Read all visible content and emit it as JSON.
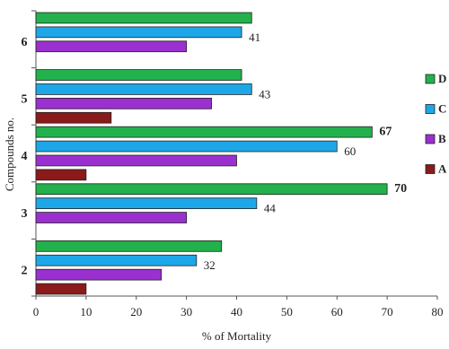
{
  "chart_data": {
    "type": "hbar",
    "xlabel": "% of Mortality",
    "ylabel": "Compounds no.",
    "categories": [
      "2",
      "3",
      "4",
      "5",
      "6"
    ],
    "series": [
      {
        "name": "A",
        "color": "#8b1a1a",
        "values": [
          10,
          null,
          10,
          15,
          null
        ],
        "value_labels": [
          null,
          null,
          null,
          null,
          null
        ]
      },
      {
        "name": "B",
        "color": "#9b30d0",
        "values": [
          25,
          30,
          40,
          35,
          30
        ],
        "value_labels": [
          null,
          null,
          null,
          null,
          null
        ]
      },
      {
        "name": "C",
        "color": "#1ea7e8",
        "values": [
          32,
          44,
          60,
          43,
          41
        ],
        "value_labels": [
          32,
          44,
          60,
          43,
          41
        ]
      },
      {
        "name": "D",
        "color": "#22b14c",
        "values": [
          37,
          70,
          67,
          41,
          43
        ],
        "value_labels": [
          null,
          70,
          67,
          null,
          null
        ]
      }
    ],
    "xlim": [
      0,
      80
    ],
    "xticks": [
      0,
      10,
      20,
      30,
      40,
      50,
      60,
      70,
      80
    ]
  }
}
